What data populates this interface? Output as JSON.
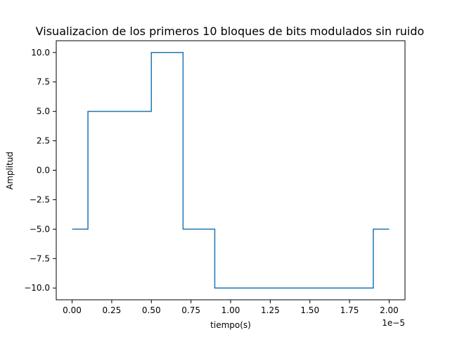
{
  "chart_data": {
    "type": "line",
    "title": "Visualizacion de los primeros 10 bloques de bits modulados sin ruido",
    "xlabel": "tiempo(s)",
    "ylabel": "Amplitud",
    "x_offset_label": "1e−5",
    "xlim": [
      -0.1,
      2.1
    ],
    "ylim": [
      -11,
      11
    ],
    "grid": false,
    "legend": "none",
    "x_ticks": [
      {
        "value": 0.0,
        "label": "0.00"
      },
      {
        "value": 0.25,
        "label": "0.25"
      },
      {
        "value": 0.5,
        "label": "0.50"
      },
      {
        "value": 0.75,
        "label": "0.75"
      },
      {
        "value": 1.0,
        "label": "1.00"
      },
      {
        "value": 1.25,
        "label": "1.25"
      },
      {
        "value": 1.5,
        "label": "1.50"
      },
      {
        "value": 1.75,
        "label": "1.75"
      },
      {
        "value": 2.0,
        "label": "2.00"
      }
    ],
    "y_ticks": [
      {
        "value": -10.0,
        "label": "−10.0"
      },
      {
        "value": -7.5,
        "label": "−7.5"
      },
      {
        "value": -5.0,
        "label": "−5.0"
      },
      {
        "value": -2.5,
        "label": "−2.5"
      },
      {
        "value": 0.0,
        "label": "0.0"
      },
      {
        "value": 2.5,
        "label": "2.5"
      },
      {
        "value": 5.0,
        "label": "5.0"
      },
      {
        "value": 7.5,
        "label": "7.5"
      },
      {
        "value": 10.0,
        "label": "10.0"
      }
    ],
    "series": [
      {
        "color": "#1f77b4",
        "x": [
          0.0,
          0.1,
          0.1,
          0.5,
          0.5,
          0.7,
          0.7,
          0.9,
          0.9,
          1.9,
          1.9,
          2.0
        ],
        "y": [
          -5,
          -5,
          5,
          5,
          10,
          10,
          -5,
          -5,
          -10,
          -10,
          -5,
          -5
        ]
      }
    ]
  }
}
